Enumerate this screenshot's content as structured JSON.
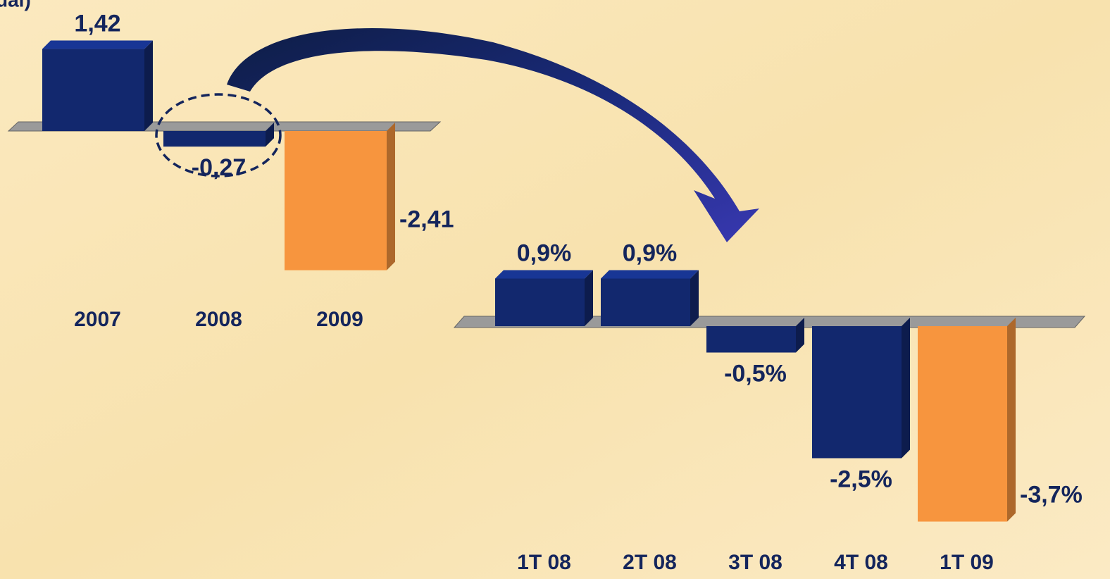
{
  "chart_data": [
    {
      "type": "bar",
      "title": "ual)",
      "categories": [
        "2007",
        "2008",
        "2009"
      ],
      "values": [
        1.42,
        -0.27,
        -2.41
      ],
      "value_labels": [
        "1,42",
        "-0,27",
        "-2,41"
      ],
      "colors": [
        "#12286e",
        "#12286e",
        "#f7953e"
      ]
    },
    {
      "type": "bar",
      "categories": [
        "1T 08",
        "2T 08",
        "3T 08",
        "4T 08",
        "1T 09"
      ],
      "values": [
        0.9,
        0.9,
        -0.5,
        -2.5,
        -3.7
      ],
      "value_labels": [
        "0,9%",
        "0,9%",
        "-0,5%",
        "-2,5%",
        "-3,7%"
      ],
      "colors": [
        "#12286e",
        "#12286e",
        "#12286e",
        "#12286e",
        "#f7953e"
      ]
    }
  ]
}
